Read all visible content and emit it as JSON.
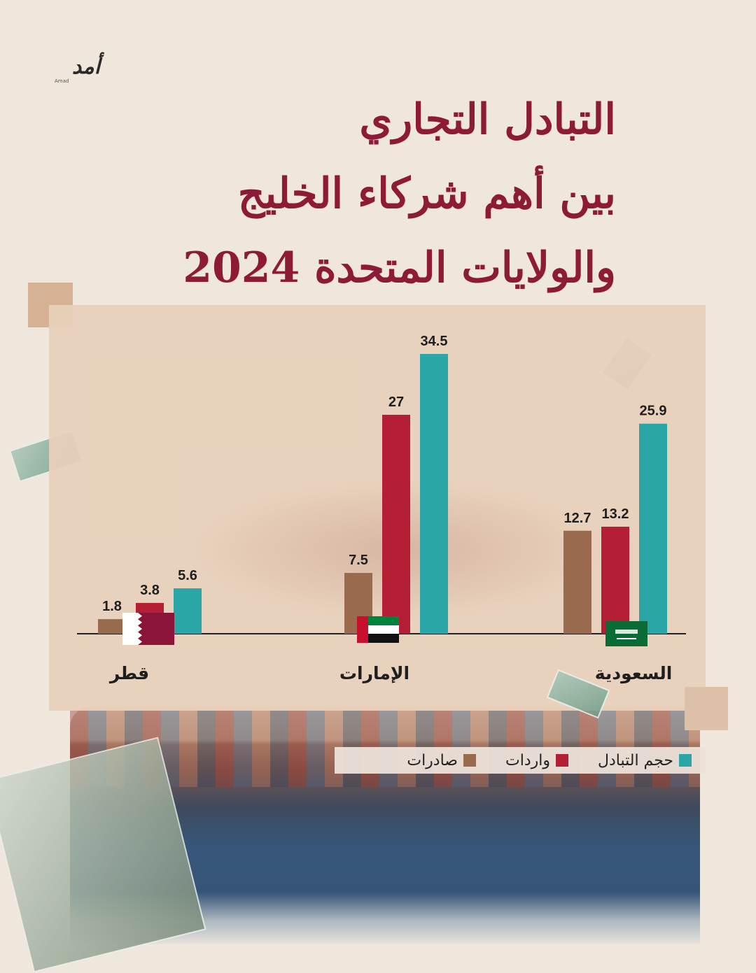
{
  "logo": {
    "text": "أمد",
    "sub": "Amad"
  },
  "title_lines": [
    "التبادل التجاري",
    "بين أهم شركاء الخليج",
    "والولايات المتحدة 2024"
  ],
  "colors": {
    "exports": "#9a6a4f",
    "imports": "#b51f35",
    "volume": "#2aa6a6",
    "title": "#8e1b35"
  },
  "legend": [
    {
      "label": "حجم التبادل",
      "color": "#2aa6a6"
    },
    {
      "label": "واردات",
      "color": "#b51f35"
    },
    {
      "label": "صادرات",
      "color": "#9a6a4f"
    }
  ],
  "chart_data": {
    "type": "bar",
    "categories": [
      "قطر",
      "الإمارات",
      "السعودية"
    ],
    "series": [
      {
        "name": "صادرات",
        "values": [
          1.8,
          7.5,
          12.7
        ]
      },
      {
        "name": "واردات",
        "values": [
          3.8,
          27,
          13.2
        ]
      },
      {
        "name": "حجم التبادل",
        "values": [
          5.6,
          34.5,
          25.9
        ]
      }
    ],
    "value_labels": [
      [
        "1.8",
        "7.5",
        "12.7"
      ],
      [
        "3.8",
        "27",
        "13.2"
      ],
      [
        "5.6",
        "34.5",
        "25.9"
      ]
    ],
    "flags": [
      "qatar-flag",
      "uae-flag",
      "saudi-flag"
    ],
    "ylim": [
      0,
      34.5
    ],
    "grid": false,
    "legend_position": "bottom-right"
  }
}
